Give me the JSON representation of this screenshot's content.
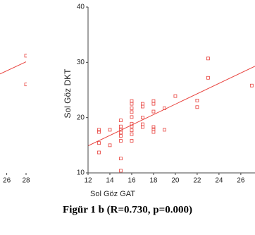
{
  "chart_data": [
    {
      "type": "scatter",
      "color": "#e8413c",
      "x": [
        28,
        28
      ],
      "y": [
        31.2,
        26.0
      ],
      "fit_line": {
        "x": [
          25.3,
          28
        ],
        "y": [
          27.9,
          30.1
        ]
      },
      "xlim": [
        25.3,
        28
      ],
      "ylim": [
        10,
        40
      ],
      "xticks": [
        26,
        28
      ]
    },
    {
      "type": "scatter",
      "color": "#e8413c",
      "ylabel": "Sol Göz DKT",
      "xlabel": "Sol Göz GAT",
      "x": [
        13,
        13,
        13,
        13,
        14,
        14,
        15,
        15,
        15,
        15,
        15,
        15,
        15,
        15,
        16,
        16,
        16,
        16,
        16,
        16,
        16,
        16,
        16,
        16,
        17,
        17,
        17,
        17,
        17,
        18,
        18,
        18,
        18,
        18,
        18,
        19,
        19,
        20,
        22,
        22,
        23,
        23,
        27
      ],
      "y": [
        17.8,
        17.4,
        15.4,
        13.7,
        17.8,
        15,
        19.5,
        18.4,
        17.8,
        17.3,
        16.7,
        15.8,
        12.6,
        10.4,
        23,
        22.5,
        21.7,
        21,
        20.1,
        18.9,
        18.4,
        17.7,
        17,
        15.8,
        22.5,
        22,
        20,
        18.8,
        18.3,
        23,
        22.5,
        21.1,
        18.3,
        17.9,
        17.4,
        21.7,
        17.8,
        23.9,
        23.1,
        21.9,
        30.7,
        27.2,
        25.8
      ],
      "fit_line": {
        "x": [
          12,
          27.3
        ],
        "y": [
          14.9,
          29.3
        ]
      },
      "xlim": [
        12,
        27.3
      ],
      "ylim": [
        10,
        40
      ],
      "xticks": [
        12,
        14,
        16,
        18,
        20,
        22,
        24,
        26
      ],
      "yticks": [
        10,
        20,
        30,
        40
      ]
    }
  ],
  "caption": "Figür 1 b (R=0.730, p=0.000)"
}
